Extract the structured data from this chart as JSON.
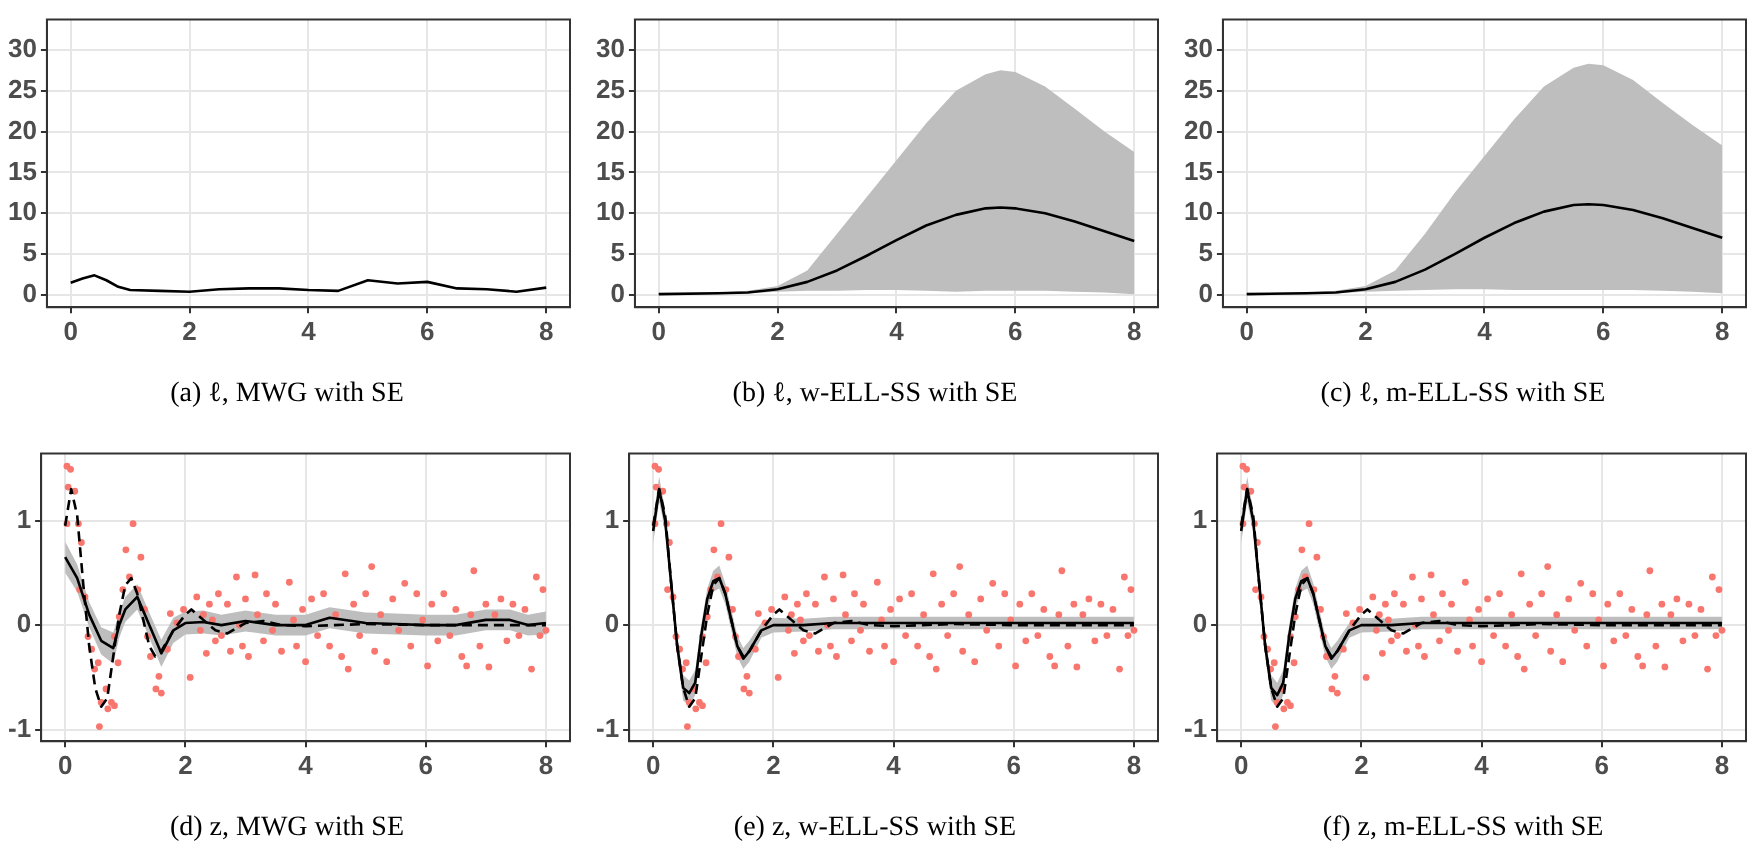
{
  "chart_data": [
    {
      "type": "line",
      "title": "(a) ℓ, MWG with SE",
      "xlim": [
        -0.4,
        8.4
      ],
      "xticks": [
        0,
        2,
        4,
        6,
        8
      ],
      "ylim": [
        -1.5,
        33.7
      ],
      "yticks": [
        0,
        5,
        10,
        15,
        20,
        25,
        30
      ],
      "grid": true,
      "series": [
        {
          "color": "#000000",
          "x": [
            0,
            0.2,
            0.4,
            0.6,
            0.8,
            1,
            1.5,
            2,
            2.5,
            3,
            3.5,
            4,
            4.5,
            5,
            5.5,
            6,
            6.5,
            7,
            7.5,
            8
          ],
          "values": [
            1.5,
            2.0,
            2.4,
            1.8,
            1.0,
            0.6,
            0.5,
            0.4,
            0.7,
            0.8,
            0.8,
            0.6,
            0.5,
            1.8,
            1.4,
            1.6,
            0.8,
            0.7,
            0.4,
            0.9
          ]
        }
      ]
    },
    {
      "type": "line",
      "title": "(b) ℓ, w-ELL-SS with SE",
      "xlim": [
        -0.4,
        8.4
      ],
      "xticks": [
        0,
        2,
        4,
        6,
        8
      ],
      "ylim": [
        -1.5,
        33.7
      ],
      "yticks": [
        0,
        5,
        10,
        15,
        20,
        25,
        30
      ],
      "grid": true,
      "series": [
        {
          "color": "#000000",
          "x": [
            0,
            1,
            1.5,
            2,
            2.5,
            3,
            3.5,
            4,
            4.5,
            5,
            5.5,
            5.75,
            6,
            6.5,
            7,
            7.5,
            8
          ],
          "values": [
            0.1,
            0.2,
            0.3,
            0.7,
            1.6,
            3.0,
            4.8,
            6.7,
            8.5,
            9.8,
            10.6,
            10.7,
            10.6,
            10.0,
            9.0,
            7.8,
            6.6
          ],
          "lower": [
            0.05,
            0.1,
            0.2,
            0.4,
            0.5,
            0.5,
            0.6,
            0.6,
            0.5,
            0.4,
            0.5,
            0.5,
            0.5,
            0.5,
            0.4,
            0.3,
            0.1
          ],
          "upper": [
            0.2,
            0.3,
            0.5,
            1.1,
            3.0,
            7.5,
            12,
            16.5,
            21,
            25,
            27,
            27.5,
            27.3,
            25.5,
            22.8,
            20,
            17.5
          ]
        }
      ]
    },
    {
      "type": "line",
      "title": "(c) ℓ, m-ELL-SS with SE",
      "xlim": [
        -0.4,
        8.4
      ],
      "xticks": [
        0,
        2,
        4,
        6,
        8
      ],
      "ylim": [
        -1.5,
        33.7
      ],
      "yticks": [
        0,
        5,
        10,
        15,
        20,
        25,
        30
      ],
      "grid": true,
      "series": [
        {
          "color": "#000000",
          "x": [
            0,
            1,
            1.5,
            2,
            2.5,
            3,
            3.5,
            4,
            4.5,
            5,
            5.5,
            5.75,
            6,
            6.5,
            7,
            7.5,
            8
          ],
          "values": [
            0.1,
            0.2,
            0.3,
            0.7,
            1.6,
            3.1,
            5.0,
            7.0,
            8.8,
            10.2,
            11.0,
            11.1,
            11.0,
            10.4,
            9.4,
            8.2,
            7.0
          ],
          "lower": [
            0.05,
            0.1,
            0.2,
            0.4,
            0.5,
            0.6,
            0.7,
            0.7,
            0.6,
            0.6,
            0.6,
            0.6,
            0.6,
            0.6,
            0.5,
            0.4,
            0.2
          ],
          "upper": [
            0.2,
            0.3,
            0.5,
            1.1,
            3.0,
            7.5,
            12.5,
            17,
            21.5,
            25.5,
            27.8,
            28.3,
            28.1,
            26.3,
            23.5,
            20.8,
            18.3
          ]
        }
      ]
    },
    {
      "type": "line",
      "title": "(d) z, MWG with SE",
      "xlim": [
        -0.4,
        8.4
      ],
      "xticks": [
        0,
        2,
        4,
        6,
        8
      ],
      "ylim": [
        -1.11,
        1.64
      ],
      "yticks": [
        -1,
        0,
        1
      ],
      "grid": true,
      "series": [
        {
          "type": "scatter",
          "color": "#f8766d",
          "marker": "circle",
          "x": [
            0.03,
            0.09,
            0.05,
            0.16,
            0.03,
            0.22,
            0.27,
            0.24,
            0.33,
            0.38,
            0.44,
            0.49,
            0.55,
            0.57,
            0.6,
            0.68,
            0.71,
            0.77,
            0.82,
            0.88,
            0.82,
            0.9,
            0.96,
            1.01,
            1.07,
            1.13,
            1.21,
            1.26,
            1.32,
            1.37,
            1.42,
            1.51,
            1.56,
            1.6,
            1.7,
            1.75,
            1.86,
            1.97,
            2.08,
            2.19,
            2.25,
            2.3,
            2.35,
            2.4,
            2.45,
            2.5,
            2.55,
            2.6,
            2.7,
            2.75,
            2.85,
            2.9,
            2.95,
            3.0,
            3.05,
            3.16,
            3.2,
            3.3,
            3.35,
            3.45,
            3.5,
            3.6,
            3.73,
            3.8,
            3.85,
            3.95,
            4.0,
            4.1,
            4.2,
            4.3,
            4.4,
            4.5,
            4.6,
            4.66,
            4.71,
            4.8,
            4.9,
            5.0,
            5.1,
            5.15,
            5.25,
            5.35,
            5.45,
            5.55,
            5.65,
            5.75,
            5.85,
            5.95,
            6.03,
            6.1,
            6.2,
            6.3,
            6.4,
            6.5,
            6.6,
            6.68,
            6.75,
            6.8,
            6.9,
            7.0,
            7.05,
            7.15,
            7.25,
            7.35,
            7.45,
            7.55,
            7.65,
            7.76,
            7.84,
            7.9,
            7.95,
            8.0
          ],
          "values": [
            1.52,
            1.49,
            1.32,
            1.28,
            0.97,
            0.97,
            0.79,
            0.34,
            0.27,
            -0.11,
            -0.23,
            -0.42,
            -0.36,
            -0.97,
            -0.74,
            -0.61,
            -0.8,
            -0.74,
            -0.77,
            -0.36,
            -0.11,
            0.08,
            0.34,
            0.72,
            0.46,
            0.97,
            0.34,
            0.65,
            0.15,
            -0.11,
            -0.3,
            -0.61,
            -0.49,
            -0.65,
            -0.23,
            0.11,
            0.02,
            0.15,
            -0.5,
            0.27,
            -0.05,
            0.1,
            -0.27,
            0.2,
            0.05,
            -0.15,
            0.3,
            -0.1,
            0.2,
            -0.25,
            0.46,
            0.0,
            -0.2,
            0.25,
            -0.3,
            0.48,
            0.1,
            -0.15,
            0.3,
            -0.05,
            0.2,
            -0.25,
            0.41,
            0.05,
            -0.2,
            0.15,
            -0.35,
            0.25,
            -0.1,
            0.3,
            -0.2,
            0.1,
            -0.3,
            0.49,
            -0.42,
            0.2,
            -0.1,
            0.3,
            0.56,
            -0.25,
            0.1,
            -0.35,
            0.25,
            -0.05,
            0.4,
            -0.2,
            0.3,
            0.05,
            -0.39,
            0.2,
            -0.15,
            0.3,
            -0.1,
            0.15,
            -0.3,
            -0.39,
            0.1,
            0.52,
            -0.2,
            0.2,
            -0.4,
            0.1,
            0.25,
            -0.15,
            0.2,
            -0.1,
            0.15,
            -0.42,
            0.46,
            -0.1,
            0.34,
            -0.05
          ]
        },
        {
          "color": "#000000",
          "line_style": "dashed",
          "x": [
            0,
            0.1,
            0.2,
            0.3,
            0.4,
            0.5,
            0.6,
            0.7,
            0.8,
            0.9,
            1.0,
            1.1,
            1.2,
            1.3,
            1.4,
            1.5,
            1.6,
            1.8,
            2.0,
            2.1,
            2.3,
            2.5,
            2.7,
            3.0,
            3.3,
            3.6,
            4,
            5,
            6,
            7,
            8
          ],
          "values": [
            0.95,
            1.3,
            1.05,
            0.4,
            -0.2,
            -0.6,
            -0.78,
            -0.7,
            -0.3,
            0.1,
            0.38,
            0.45,
            0.3,
            0.05,
            -0.2,
            -0.3,
            -0.25,
            -0.05,
            0.1,
            0.15,
            0.05,
            -0.05,
            -0.08,
            0.02,
            0.04,
            0.0,
            -0.01,
            0.01,
            0.0,
            0.0,
            0.0
          ]
        },
        {
          "color": "#000000",
          "x": [
            0,
            0.2,
            0.4,
            0.6,
            0.8,
            0.9,
            1.0,
            1.2,
            1.4,
            1.6,
            1.8,
            2.0,
            2.3,
            2.6,
            3.0,
            3.5,
            4.0,
            4.4,
            5,
            5.5,
            6,
            6.5,
            7,
            7.4,
            7.7,
            8
          ],
          "values": [
            0.65,
            0.45,
            0.1,
            -0.15,
            -0.22,
            0.0,
            0.15,
            0.27,
            0.0,
            -0.27,
            -0.05,
            0.02,
            0.03,
            0.0,
            0.04,
            0.0,
            0.0,
            0.07,
            0.02,
            0.01,
            0.0,
            0.0,
            0.05,
            0.05,
            0.0,
            0.02
          ],
          "lower": [
            0.5,
            0.32,
            -0.02,
            -0.28,
            -0.37,
            -0.12,
            0.03,
            0.15,
            -0.12,
            -0.4,
            -0.17,
            -0.09,
            -0.08,
            -0.1,
            -0.06,
            -0.1,
            -0.1,
            -0.03,
            -0.08,
            -0.09,
            -0.1,
            -0.1,
            -0.05,
            -0.05,
            -0.1,
            -0.09
          ],
          "upper": [
            0.8,
            0.58,
            0.22,
            -0.02,
            -0.07,
            0.12,
            0.27,
            0.39,
            0.12,
            -0.14,
            0.07,
            0.13,
            0.14,
            0.1,
            0.14,
            0.1,
            0.1,
            0.17,
            0.12,
            0.11,
            0.1,
            0.1,
            0.15,
            0.15,
            0.1,
            0.13
          ]
        }
      ]
    },
    {
      "type": "line",
      "title": "(e) z, w-ELL-SS with SE",
      "xlim": [
        -0.4,
        8.4
      ],
      "xticks": [
        0,
        2,
        4,
        6,
        8
      ],
      "ylim": [
        -1.11,
        1.64
      ],
      "yticks": [
        -1,
        0,
        1
      ],
      "grid": true,
      "series": [
        {
          "type": "scatter",
          "color": "#f8766d",
          "marker": "circle",
          "x": [
            0.03,
            0.09,
            0.05,
            0.16,
            0.03,
            0.22,
            0.27,
            0.24,
            0.33,
            0.38,
            0.44,
            0.49,
            0.55,
            0.57,
            0.6,
            0.68,
            0.71,
            0.77,
            0.82,
            0.88,
            0.82,
            0.9,
            0.96,
            1.01,
            1.07,
            1.13,
            1.21,
            1.26,
            1.32,
            1.37,
            1.42,
            1.51,
            1.56,
            1.6,
            1.7,
            1.75,
            1.86,
            1.97,
            2.08,
            2.19,
            2.25,
            2.3,
            2.35,
            2.4,
            2.45,
            2.5,
            2.55,
            2.6,
            2.7,
            2.75,
            2.85,
            2.9,
            2.95,
            3.0,
            3.05,
            3.16,
            3.2,
            3.3,
            3.35,
            3.45,
            3.5,
            3.6,
            3.73,
            3.8,
            3.85,
            3.95,
            4.0,
            4.1,
            4.2,
            4.3,
            4.4,
            4.5,
            4.6,
            4.66,
            4.71,
            4.8,
            4.9,
            5.0,
            5.1,
            5.15,
            5.25,
            5.35,
            5.45,
            5.55,
            5.65,
            5.75,
            5.85,
            5.95,
            6.03,
            6.1,
            6.2,
            6.3,
            6.4,
            6.5,
            6.6,
            6.68,
            6.75,
            6.8,
            6.9,
            7.0,
            7.05,
            7.15,
            7.25,
            7.35,
            7.45,
            7.55,
            7.65,
            7.76,
            7.84,
            7.9,
            7.95,
            8.0
          ],
          "values": [
            1.52,
            1.49,
            1.32,
            1.28,
            0.97,
            0.97,
            0.79,
            0.34,
            0.27,
            -0.11,
            -0.23,
            -0.42,
            -0.36,
            -0.97,
            -0.74,
            -0.61,
            -0.8,
            -0.74,
            -0.77,
            -0.36,
            -0.11,
            0.08,
            0.34,
            0.72,
            0.46,
            0.97,
            0.34,
            0.65,
            0.15,
            -0.11,
            -0.3,
            -0.61,
            -0.49,
            -0.65,
            -0.23,
            0.11,
            0.02,
            0.15,
            -0.5,
            0.27,
            -0.05,
            0.1,
            -0.27,
            0.2,
            0.05,
            -0.15,
            0.3,
            -0.1,
            0.2,
            -0.25,
            0.46,
            0.0,
            -0.2,
            0.25,
            -0.3,
            0.48,
            0.1,
            -0.15,
            0.3,
            -0.05,
            0.2,
            -0.25,
            0.41,
            0.05,
            -0.2,
            0.15,
            -0.35,
            0.25,
            -0.1,
            0.3,
            -0.2,
            0.1,
            -0.3,
            0.49,
            -0.42,
            0.2,
            -0.1,
            0.3,
            0.56,
            -0.25,
            0.1,
            -0.35,
            0.25,
            -0.05,
            0.4,
            -0.2,
            0.3,
            0.05,
            -0.39,
            0.2,
            -0.15,
            0.3,
            -0.1,
            0.15,
            -0.3,
            -0.39,
            0.1,
            0.52,
            -0.2,
            0.2,
            -0.4,
            0.1,
            0.25,
            -0.15,
            0.2,
            -0.1,
            0.15,
            -0.42,
            0.46,
            -0.1,
            0.34,
            -0.05
          ]
        },
        {
          "color": "#000000",
          "line_style": "dashed",
          "x": [
            0,
            0.1,
            0.2,
            0.3,
            0.4,
            0.5,
            0.6,
            0.7,
            0.8,
            0.9,
            1.0,
            1.1,
            1.2,
            1.3,
            1.4,
            1.5,
            1.6,
            1.8,
            2.0,
            2.1,
            2.3,
            2.5,
            2.7,
            3.0,
            3.3,
            3.6,
            4,
            5,
            6,
            7,
            8
          ],
          "values": [
            0.95,
            1.3,
            1.05,
            0.4,
            -0.2,
            -0.6,
            -0.78,
            -0.7,
            -0.3,
            0.1,
            0.38,
            0.45,
            0.3,
            0.05,
            -0.2,
            -0.3,
            -0.25,
            -0.05,
            0.1,
            0.15,
            0.05,
            -0.05,
            -0.08,
            0.02,
            0.04,
            0.0,
            -0.01,
            0.01,
            0.0,
            0.0,
            0.0
          ]
        },
        {
          "color": "#000000",
          "x": [
            0,
            0.1,
            0.2,
            0.3,
            0.4,
            0.5,
            0.6,
            0.7,
            0.8,
            0.9,
            1.0,
            1.1,
            1.2,
            1.3,
            1.4,
            1.5,
            1.6,
            1.8,
            2.0,
            2.5,
            3,
            8
          ],
          "values": [
            0.9,
            1.3,
            1.0,
            0.4,
            -0.2,
            -0.6,
            -0.65,
            -0.55,
            -0.1,
            0.25,
            0.42,
            0.45,
            0.3,
            0.05,
            -0.2,
            -0.32,
            -0.25,
            -0.05,
            0.0,
            0.0,
            0.02,
            0.02
          ],
          "lower": [
            0.78,
            1.18,
            0.9,
            0.3,
            -0.3,
            -0.72,
            -0.77,
            -0.67,
            -0.2,
            0.15,
            0.32,
            0.35,
            0.2,
            -0.05,
            -0.3,
            -0.42,
            -0.35,
            -0.12,
            -0.07,
            -0.06,
            -0.04,
            -0.04
          ],
          "upper": [
            1.02,
            1.42,
            1.1,
            0.5,
            -0.1,
            -0.48,
            -0.53,
            -0.43,
            0.0,
            0.35,
            0.52,
            0.57,
            0.4,
            0.15,
            -0.1,
            -0.22,
            -0.15,
            0.02,
            0.07,
            0.06,
            0.08,
            0.08
          ]
        }
      ]
    },
    {
      "type": "line",
      "title": "(f) z, m-ELL-SS with SE",
      "xlim": [
        -0.4,
        8.4
      ],
      "xticks": [
        0,
        2,
        4,
        6,
        8
      ],
      "ylim": [
        -1.11,
        1.64
      ],
      "yticks": [
        -1,
        0,
        1
      ],
      "grid": true,
      "series": [
        {
          "type": "scatter",
          "color": "#f8766d",
          "marker": "circle",
          "x": [
            0.03,
            0.09,
            0.05,
            0.16,
            0.03,
            0.22,
            0.27,
            0.24,
            0.33,
            0.38,
            0.44,
            0.49,
            0.55,
            0.57,
            0.6,
            0.68,
            0.71,
            0.77,
            0.82,
            0.88,
            0.82,
            0.9,
            0.96,
            1.01,
            1.07,
            1.13,
            1.21,
            1.26,
            1.32,
            1.37,
            1.42,
            1.51,
            1.56,
            1.6,
            1.7,
            1.75,
            1.86,
            1.97,
            2.08,
            2.19,
            2.25,
            2.3,
            2.35,
            2.4,
            2.45,
            2.5,
            2.55,
            2.6,
            2.7,
            2.75,
            2.85,
            2.9,
            2.95,
            3.0,
            3.05,
            3.16,
            3.2,
            3.3,
            3.35,
            3.45,
            3.5,
            3.6,
            3.73,
            3.8,
            3.85,
            3.95,
            4.0,
            4.1,
            4.2,
            4.3,
            4.4,
            4.5,
            4.6,
            4.66,
            4.71,
            4.8,
            4.9,
            5.0,
            5.1,
            5.15,
            5.25,
            5.35,
            5.45,
            5.55,
            5.65,
            5.75,
            5.85,
            5.95,
            6.03,
            6.1,
            6.2,
            6.3,
            6.4,
            6.5,
            6.6,
            6.68,
            6.75,
            6.8,
            6.9,
            7.0,
            7.05,
            7.15,
            7.25,
            7.35,
            7.45,
            7.55,
            7.65,
            7.76,
            7.84,
            7.9,
            7.95,
            8.0
          ],
          "values": [
            1.52,
            1.49,
            1.32,
            1.28,
            0.97,
            0.97,
            0.79,
            0.34,
            0.27,
            -0.11,
            -0.23,
            -0.42,
            -0.36,
            -0.97,
            -0.74,
            -0.61,
            -0.8,
            -0.74,
            -0.77,
            -0.36,
            -0.11,
            0.08,
            0.34,
            0.72,
            0.46,
            0.97,
            0.34,
            0.65,
            0.15,
            -0.11,
            -0.3,
            -0.61,
            -0.49,
            -0.65,
            -0.23,
            0.11,
            0.02,
            0.15,
            -0.5,
            0.27,
            -0.05,
            0.1,
            -0.27,
            0.2,
            0.05,
            -0.15,
            0.3,
            -0.1,
            0.2,
            -0.25,
            0.46,
            0.0,
            -0.2,
            0.25,
            -0.3,
            0.48,
            0.1,
            -0.15,
            0.3,
            -0.05,
            0.2,
            -0.25,
            0.41,
            0.05,
            -0.2,
            0.15,
            -0.35,
            0.25,
            -0.1,
            0.3,
            -0.2,
            0.1,
            -0.3,
            0.49,
            -0.42,
            0.2,
            -0.1,
            0.3,
            0.56,
            -0.25,
            0.1,
            -0.35,
            0.25,
            -0.05,
            0.4,
            -0.2,
            0.3,
            0.05,
            -0.39,
            0.2,
            -0.15,
            0.3,
            -0.1,
            0.15,
            -0.3,
            -0.39,
            0.1,
            0.52,
            -0.2,
            0.2,
            -0.4,
            0.1,
            0.25,
            -0.15,
            0.2,
            -0.1,
            0.15,
            -0.42,
            0.46,
            -0.1,
            0.34,
            -0.05
          ]
        },
        {
          "color": "#000000",
          "line_style": "dashed",
          "x": [
            0,
            0.1,
            0.2,
            0.3,
            0.4,
            0.5,
            0.6,
            0.7,
            0.8,
            0.9,
            1.0,
            1.1,
            1.2,
            1.3,
            1.4,
            1.5,
            1.6,
            1.8,
            2.0,
            2.1,
            2.3,
            2.5,
            2.7,
            3.0,
            3.3,
            3.6,
            4,
            5,
            6,
            7,
            8
          ],
          "values": [
            0.95,
            1.3,
            1.05,
            0.4,
            -0.2,
            -0.6,
            -0.78,
            -0.7,
            -0.3,
            0.1,
            0.38,
            0.45,
            0.3,
            0.05,
            -0.2,
            -0.3,
            -0.25,
            -0.05,
            0.1,
            0.15,
            0.05,
            -0.05,
            -0.08,
            0.02,
            0.04,
            0.0,
            -0.01,
            0.01,
            0.0,
            0.0,
            0.0
          ]
        },
        {
          "color": "#000000",
          "x": [
            0,
            0.1,
            0.2,
            0.3,
            0.4,
            0.5,
            0.6,
            0.7,
            0.8,
            0.9,
            1.0,
            1.1,
            1.2,
            1.3,
            1.4,
            1.5,
            1.6,
            1.8,
            2.0,
            2.5,
            3,
            8
          ],
          "values": [
            0.9,
            1.3,
            1.0,
            0.4,
            -0.2,
            -0.6,
            -0.67,
            -0.55,
            -0.1,
            0.25,
            0.42,
            0.45,
            0.3,
            0.05,
            -0.2,
            -0.32,
            -0.25,
            -0.05,
            0.0,
            0.0,
            0.02,
            0.02
          ],
          "lower": [
            0.78,
            1.18,
            0.9,
            0.3,
            -0.3,
            -0.72,
            -0.79,
            -0.67,
            -0.2,
            0.15,
            0.32,
            0.35,
            0.2,
            -0.05,
            -0.3,
            -0.42,
            -0.35,
            -0.12,
            -0.07,
            -0.06,
            -0.04,
            -0.04
          ],
          "upper": [
            1.02,
            1.42,
            1.1,
            0.5,
            -0.1,
            -0.48,
            -0.55,
            -0.43,
            0.0,
            0.35,
            0.52,
            0.57,
            0.4,
            0.15,
            -0.1,
            -0.22,
            -0.15,
            0.02,
            0.07,
            0.06,
            0.08,
            0.08
          ]
        }
      ]
    }
  ]
}
